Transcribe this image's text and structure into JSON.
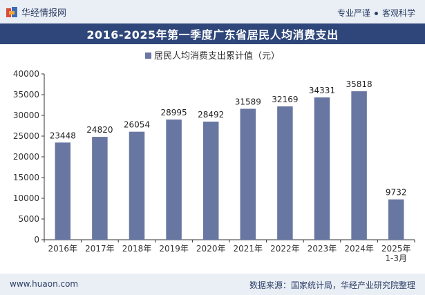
{
  "header": {
    "brand": "华经情报网",
    "tagline_left": "专业严谨",
    "tagline_right": "客观科学"
  },
  "colors": {
    "bar": "#6877a2",
    "title_bg": "#2e4679",
    "band_bg": "#eaeff6"
  },
  "chart_data": {
    "type": "bar",
    "title": "2016-2025年第一季度广东省居民人均消费支出",
    "legend_position": "top-center",
    "grid": false,
    "categories": [
      "2016年",
      "2017年",
      "2018年",
      "2019年",
      "2020年",
      "2021年",
      "2022年",
      "2023年",
      "2024年",
      "2025年\n1-3月"
    ],
    "series": [
      {
        "name": "居民人均消费支出累计值（元）",
        "values": [
          23448,
          24820,
          26054,
          28995,
          28492,
          31589,
          32169,
          34331,
          35818,
          9732
        ]
      }
    ],
    "ylim": [
      0,
      40000
    ],
    "yticks": [
      0,
      5000,
      10000,
      15000,
      20000,
      25000,
      30000,
      35000,
      40000
    ]
  },
  "footer": {
    "site": "www.huaon.com",
    "source": "数据来源：国家统计局，华经产业研究院整理"
  }
}
